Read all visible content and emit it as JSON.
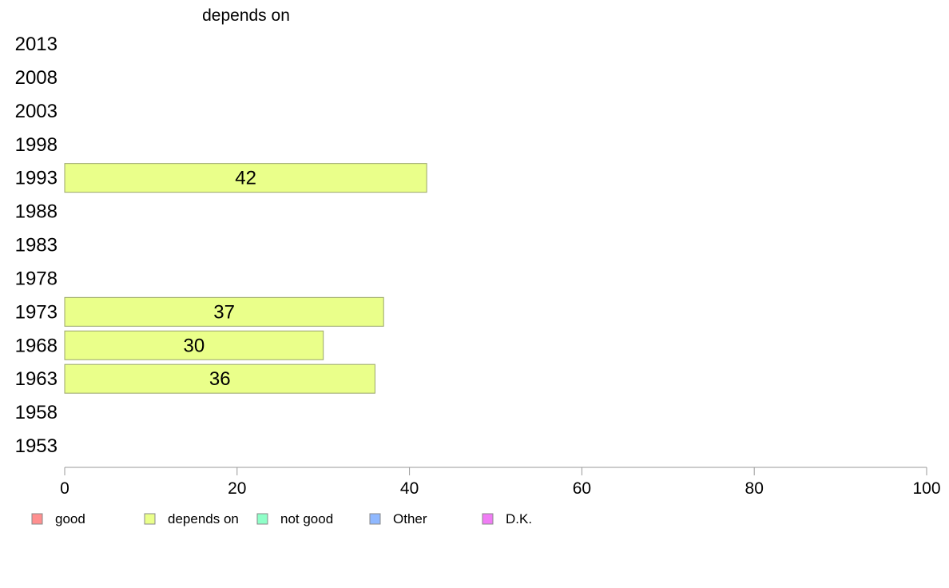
{
  "chart_data": {
    "type": "bar",
    "orientation": "horizontal",
    "title": "depends on",
    "categories": [
      "2013",
      "2008",
      "2003",
      "1998",
      "1993",
      "1988",
      "1983",
      "1978",
      "1973",
      "1968",
      "1963",
      "1958",
      "1953"
    ],
    "series": [
      {
        "name": "depends on",
        "color": "#eaff8a",
        "values": [
          null,
          null,
          null,
          null,
          42,
          null,
          null,
          null,
          37,
          30,
          36,
          null,
          null
        ]
      }
    ],
    "xlim": [
      0,
      100
    ],
    "xticks": [
      "0",
      "20",
      "40",
      "60",
      "80",
      "100"
    ],
    "grid": false,
    "legend_position": "bottom",
    "legend": [
      {
        "label": "good",
        "color": "#ff8f8f"
      },
      {
        "label": "depends on",
        "color": "#eaff8a"
      },
      {
        "label": "not good",
        "color": "#8fffc8"
      },
      {
        "label": "Other",
        "color": "#8fb8ff"
      },
      {
        "label": "D.K.",
        "color": "#f07cf5"
      }
    ]
  }
}
